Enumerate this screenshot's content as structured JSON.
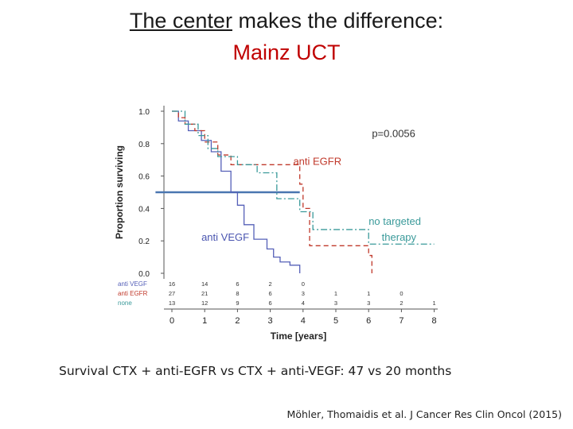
{
  "slide": {
    "title_underlined": "The center",
    "title_rest": " makes the difference:",
    "subtitle": "Mainz UCT",
    "caption": "Survival CTX + anti-EGFR vs CTX + anti-VEGF: 47 vs 20 months",
    "reference": "Möhler, Thomaidis et al. J Cancer Res Clin Oncol (2015)"
  },
  "chart_data": {
    "type": "line",
    "subtype": "kaplan-meier",
    "xlabel": "Time [years]",
    "ylabel": "Proportion surviving",
    "xlim": [
      0,
      8
    ],
    "ylim": [
      0,
      1
    ],
    "xticks": [
      0,
      1,
      2,
      3,
      4,
      5,
      6,
      7,
      8
    ],
    "yticks": [
      "0.0",
      "0.2",
      "0.4",
      "0.6",
      "0.8",
      "1.0"
    ],
    "pvalue_text": "p=0.0056",
    "annotations": [
      {
        "text": "anti EGFR",
        "color": "#c0392b",
        "x": 3.7,
        "y": 0.67
      },
      {
        "text": "no targeted",
        "color": "#3a9a9a",
        "x": 6.0,
        "y": 0.3
      },
      {
        "text": "therapy",
        "color": "#3a9a9a",
        "x": 6.4,
        "y": 0.2
      },
      {
        "text": "anti VEGF",
        "color": "#4a55b0",
        "x": 0.9,
        "y": 0.2
      }
    ],
    "median_line": {
      "y": 0.5,
      "x_start": -0.5,
      "x_end": 3.9,
      "color": "#4a76b0"
    },
    "series": [
      {
        "name": "anti VEGF",
        "color": "#5560b8",
        "dash": "",
        "x": [
          0,
          0.2,
          0.2,
          0.5,
          0.5,
          0.9,
          0.9,
          1.2,
          1.2,
          1.5,
          1.5,
          1.8,
          1.8,
          2.0,
          2.0,
          2.2,
          2.2,
          2.5,
          2.5,
          2.9,
          2.9,
          3.1,
          3.1,
          3.3,
          3.3,
          3.6,
          3.6,
          3.9,
          3.9
        ],
        "y": [
          1.0,
          1.0,
          0.94,
          0.94,
          0.88,
          0.88,
          0.82,
          0.82,
          0.75,
          0.75,
          0.63,
          0.63,
          0.5,
          0.5,
          0.42,
          0.42,
          0.3,
          0.3,
          0.21,
          0.21,
          0.15,
          0.15,
          0.1,
          0.1,
          0.07,
          0.07,
          0.05,
          0.05,
          0.0
        ]
      },
      {
        "name": "anti EGFR",
        "color": "#c0392b",
        "dash": "6,4",
        "x": [
          0,
          0.2,
          0.2,
          0.4,
          0.4,
          0.7,
          0.7,
          1.0,
          1.0,
          1.4,
          1.4,
          1.8,
          1.8,
          3.9,
          3.9,
          4.0,
          4.0,
          4.2,
          4.2,
          6.0,
          6.0,
          6.1,
          6.1
        ],
        "y": [
          1.0,
          1.0,
          0.96,
          0.96,
          0.92,
          0.92,
          0.88,
          0.88,
          0.81,
          0.81,
          0.73,
          0.73,
          0.67,
          0.67,
          0.55,
          0.55,
          0.4,
          0.4,
          0.17,
          0.17,
          0.11,
          0.11,
          0.0
        ]
      },
      {
        "name": "none",
        "color": "#3a9a9a",
        "dash": "8,3,2,3",
        "x": [
          0,
          0.4,
          0.4,
          0.8,
          0.8,
          1.1,
          1.1,
          1.4,
          1.4,
          2.0,
          2.0,
          2.6,
          2.6,
          3.2,
          3.2,
          3.9,
          3.9,
          4.3,
          4.3,
          6.0,
          6.0,
          8.0
        ],
        "y": [
          1.0,
          1.0,
          0.92,
          0.92,
          0.85,
          0.85,
          0.77,
          0.77,
          0.72,
          0.72,
          0.67,
          0.67,
          0.62,
          0.62,
          0.46,
          0.46,
          0.38,
          0.38,
          0.27,
          0.27,
          0.18,
          0.18
        ]
      }
    ],
    "risk_table": {
      "times": [
        0,
        1,
        2,
        3,
        4,
        5,
        6,
        7,
        8
      ],
      "rows": [
        {
          "label": "anti VEGF",
          "color": "#5560b8",
          "counts": [
            "16",
            "14",
            "6",
            "2",
            "0",
            "",
            "",
            "",
            ""
          ]
        },
        {
          "label": "anti EGFR",
          "color": "#c0392b",
          "counts": [
            "27",
            "21",
            "8",
            "6",
            "3",
            "1",
            "1",
            "0",
            ""
          ]
        },
        {
          "label": "none",
          "color": "#3a9a9a",
          "counts": [
            "13",
            "12",
            "9",
            "6",
            "4",
            "3",
            "3",
            "2",
            "1"
          ]
        }
      ]
    }
  }
}
